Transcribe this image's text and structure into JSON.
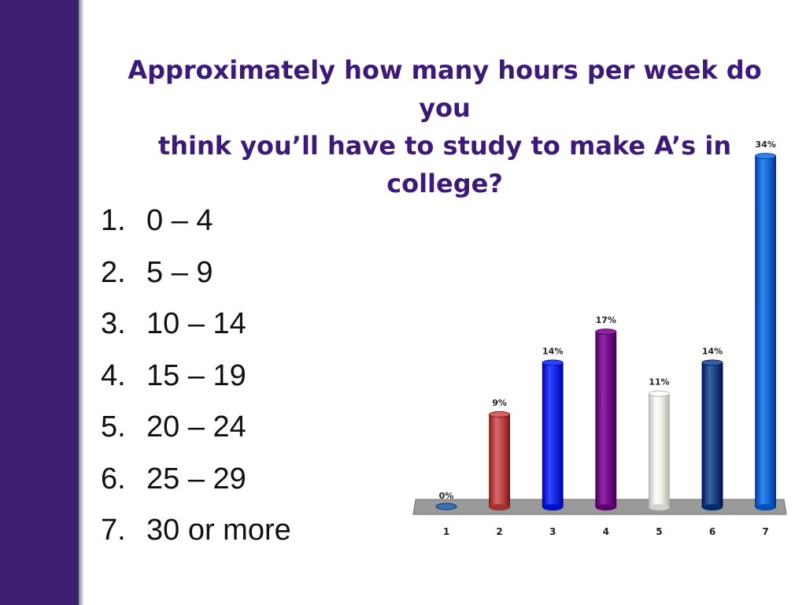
{
  "slide": {
    "title_line1": "Approximately how many hours per week do you",
    "title_line2": "think you’ll have to study to make A’s in college?",
    "accent_color": "#3c1f6e",
    "answers": [
      {
        "num": "1.",
        "text": "0 – 4"
      },
      {
        "num": "2.",
        "text": "5 – 9"
      },
      {
        "num": "3.",
        "text": "10 – 14"
      },
      {
        "num": "4.",
        "text": "15 – 19"
      },
      {
        "num": "5.",
        "text": "20 – 24"
      },
      {
        "num": "6.",
        "text": "25 – 29"
      },
      {
        "num": "7.",
        "text": "30 or more"
      }
    ]
  },
  "chart_data": {
    "type": "bar",
    "categories": [
      "1",
      "2",
      "3",
      "4",
      "5",
      "6",
      "7"
    ],
    "values": [
      0,
      9,
      14,
      17,
      11,
      14,
      34
    ],
    "value_labels": [
      "0%",
      "9%",
      "14%",
      "17%",
      "11%",
      "14%",
      "34%"
    ],
    "colors": [
      "#3b6fb0",
      "#c0504d",
      "#1a2ee8",
      "#7b0f8e",
      "#f2f0e8",
      "#1f4a8c",
      "#1a6ed8"
    ],
    "ylim": [
      0,
      34
    ],
    "grid": false,
    "legend": "none"
  }
}
